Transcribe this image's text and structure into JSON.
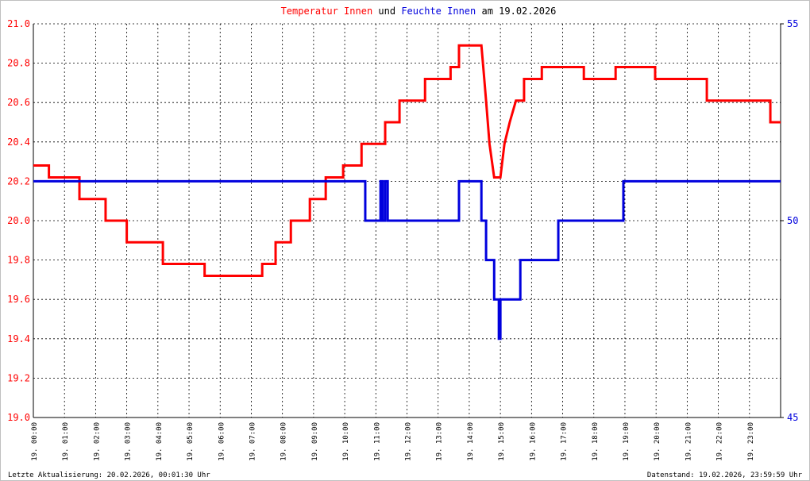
{
  "chart_data": {
    "type": "line",
    "title_date": "am 19.02.2026",
    "title_connector": "und",
    "footer_left": "Letzte Aktualisierung: 20.02.2026, 00:01:30 Uhr",
    "footer_right": "Datenstand: 19.02.2026, 23:59:59 Uhr",
    "grid": true,
    "xlim": [
      0,
      24
    ],
    "xticks": [
      {
        "value": 0,
        "label": "19. 00:00"
      },
      {
        "value": 1,
        "label": "19. 01:00"
      },
      {
        "value": 2,
        "label": "19. 02:00"
      },
      {
        "value": 3,
        "label": "19. 03:00"
      },
      {
        "value": 4,
        "label": "19. 04:00"
      },
      {
        "value": 5,
        "label": "19. 05:00"
      },
      {
        "value": 6,
        "label": "19. 06:00"
      },
      {
        "value": 7,
        "label": "19. 07:00"
      },
      {
        "value": 8,
        "label": "19. 08:00"
      },
      {
        "value": 9,
        "label": "19. 09:00"
      },
      {
        "value": 10,
        "label": "19. 10:00"
      },
      {
        "value": 11,
        "label": "19. 11:00"
      },
      {
        "value": 12,
        "label": "19. 12:00"
      },
      {
        "value": 13,
        "label": "19. 13:00"
      },
      {
        "value": 14,
        "label": "19. 14:00"
      },
      {
        "value": 15,
        "label": "19. 15:00"
      },
      {
        "value": 16,
        "label": "19. 16:00"
      },
      {
        "value": 17,
        "label": "19. 17:00"
      },
      {
        "value": 18,
        "label": "19. 18:00"
      },
      {
        "value": 19,
        "label": "19. 19:00"
      },
      {
        "value": 20,
        "label": "19. 20:00"
      },
      {
        "value": 21,
        "label": "19. 21:00"
      },
      {
        "value": 22,
        "label": "19. 22:00"
      },
      {
        "value": 23,
        "label": "19. 23:00"
      }
    ],
    "ylim": [
      19,
      21
    ],
    "yticks": [
      {
        "value": 19,
        "label": "19.0"
      },
      19.2,
      19.4,
      19.6,
      19.8,
      {
        "value": 20,
        "label": "20.0"
      },
      20.2,
      20.4,
      20.6,
      20.8,
      {
        "value": 21,
        "label": "21.0"
      }
    ],
    "y2lim": [
      45,
      55
    ],
    "y2ticks": [
      45,
      50,
      55
    ],
    "series": [
      {
        "name": "Temperatur Innen",
        "color": "#ff0000",
        "x": [
          0,
          0.5,
          0.5,
          1.48,
          1.48,
          2.32,
          2.32,
          3.0,
          3.0,
          4.16,
          4.16,
          5.5,
          5.5,
          7.35,
          7.35,
          7.78,
          7.78,
          8.27,
          8.27,
          8.88,
          8.88,
          9.39,
          9.39,
          9.95,
          9.95,
          10.54,
          10.54,
          11.3,
          11.3,
          11.76,
          11.76,
          12.58,
          12.58,
          13.4,
          13.4,
          13.67,
          13.67,
          14.39,
          14.45,
          14.54,
          14.65,
          14.8,
          15.0,
          15.13,
          15.3,
          15.5,
          15.76,
          15.76,
          16.33,
          16.33,
          17.68,
          17.68,
          18.7,
          18.7,
          19.97,
          19.97,
          21.63,
          21.63,
          23.67,
          23.67,
          24
        ],
        "values": [
          20.28,
          20.28,
          20.22,
          20.22,
          20.11,
          20.11,
          20.0,
          20.0,
          19.89,
          19.89,
          19.78,
          19.78,
          19.72,
          19.72,
          19.78,
          19.78,
          19.89,
          19.89,
          20.0,
          20.0,
          20.11,
          20.11,
          20.22,
          20.22,
          20.28,
          20.28,
          20.39,
          20.39,
          20.5,
          20.5,
          20.61,
          20.61,
          20.72,
          20.72,
          20.78,
          20.78,
          20.89,
          20.89,
          20.78,
          20.61,
          20.39,
          20.22,
          20.22,
          20.39,
          20.5,
          20.61,
          20.61,
          20.72,
          20.72,
          20.78,
          20.78,
          20.72,
          20.72,
          20.78,
          20.78,
          20.72,
          20.72,
          20.61,
          20.61,
          20.5,
          20.5
        ]
      },
      {
        "name": "Feuchte Innen",
        "color": "#0000dd",
        "axis": "y2",
        "x": [
          0,
          10.66,
          10.66,
          11.15,
          11.15,
          11.22,
          11.22,
          11.3,
          11.3,
          11.38,
          11.38,
          13.67,
          13.67,
          14.39,
          14.39,
          14.54,
          14.54,
          14.8,
          14.8,
          14.95,
          14.95,
          15.0,
          15.0,
          15.64,
          15.64,
          16.86,
          16.86,
          18.95,
          18.95,
          24
        ],
        "values": [
          51,
          51,
          50,
          50,
          51,
          51,
          50,
          50,
          51,
          51,
          50,
          50,
          51,
          51,
          50,
          50,
          49,
          49,
          48,
          48,
          47,
          47,
          48,
          48,
          49,
          49,
          50,
          50,
          51,
          51
        ]
      }
    ]
  }
}
